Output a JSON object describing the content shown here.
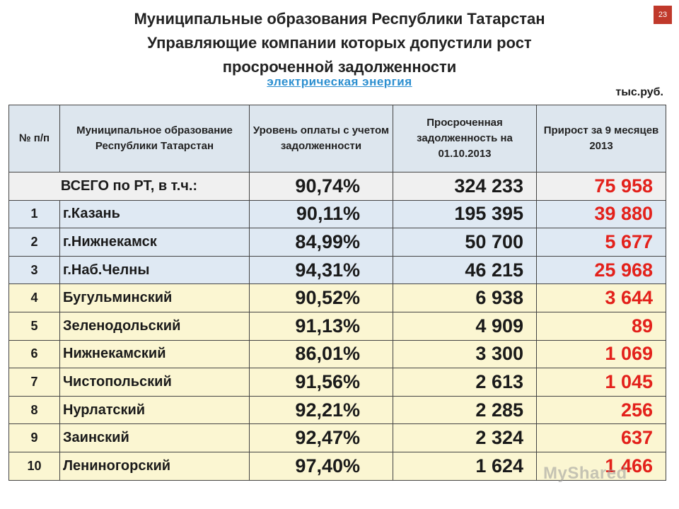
{
  "slide_number": "23",
  "title_lines": [
    "Муниципальные образования Республики Татарстан",
    "Управляющие компании которых допустили рост",
    "просроченной задолженности"
  ],
  "subtitle": "электрическая энергия",
  "units": "тыс.руб.",
  "table": {
    "headers": {
      "num": "№ п/п",
      "name": "Муниципальное образование Республики Татарстан",
      "payment": "Уровень оплаты с учетом задолженности",
      "debt": "Просроченная задолженность на 01.10.2013",
      "growth": "Прирост за 9 месяцев 2013"
    },
    "total": {
      "label": "ВСЕГО по РТ, в т.ч.:",
      "payment": "90,74%",
      "debt": "324 233",
      "growth": "75 958"
    },
    "rows": [
      {
        "num": "1",
        "name": "г.Казань",
        "payment": "90,11%",
        "debt": "195 395",
        "growth": "39 880"
      },
      {
        "num": "2",
        "name": "г.Нижнекамск",
        "payment": "84,99%",
        "debt": "50 700",
        "growth": "5 677"
      },
      {
        "num": "3",
        "name": "г.Наб.Челны",
        "payment": "94,31%",
        "debt": "46 215",
        "growth": "25 968"
      },
      {
        "num": "4",
        "name": "Бугульминский",
        "payment": "90,52%",
        "debt": "6 938",
        "growth": "3 644"
      },
      {
        "num": "5",
        "name": "Зеленодольский",
        "payment": "91,13%",
        "debt": "4 909",
        "growth": "89"
      },
      {
        "num": "6",
        "name": "Нижнекамский",
        "payment": "86,01%",
        "debt": "3 300",
        "growth": "1 069"
      },
      {
        "num": "7",
        "name": "Чистопольский",
        "payment": "91,56%",
        "debt": "2 613",
        "growth": "1 045"
      },
      {
        "num": "8",
        "name": "Нурлатский",
        "payment": "92,21%",
        "debt": "2 285",
        "growth": "256"
      },
      {
        "num": "9",
        "name": "Заинский",
        "payment": "92,47%",
        "debt": "2 324",
        "growth": "637"
      },
      {
        "num": "10",
        "name": "Лениногорский",
        "payment": "97,40%",
        "debt": "1 624",
        "growth": "1 466"
      }
    ]
  },
  "watermark": "MyShared",
  "colors": {
    "growth_text": "#e3211b",
    "subtitle_link": "#2c8fd0",
    "header_bg": "#dde6ee",
    "city_rows_bg": "#dfe9f3",
    "district_rows_bg": "#fbf6d2"
  }
}
